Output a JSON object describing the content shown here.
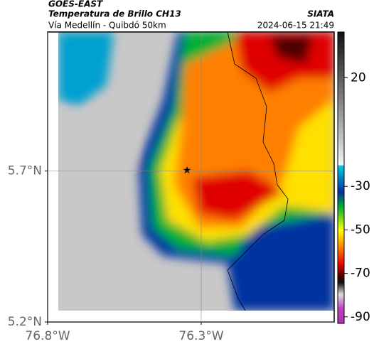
{
  "header": {
    "source": "GOES-EAST",
    "product": "Temperatura de Brillo CH13",
    "org": "SIATA",
    "subtitle": "Vía Medellín - Quibdó 50km",
    "timestamp": "2024-06-15 21:49"
  },
  "map": {
    "xlim": [
      -76.8,
      -75.867
    ],
    "ylim": [
      5.2,
      6.16
    ],
    "xticks": [
      {
        "value": -76.8,
        "label": "76.8°W"
      },
      {
        "value": -76.3,
        "label": "76.3°W"
      }
    ],
    "yticks": [
      {
        "value": 5.7,
        "label": "5.7°N"
      },
      {
        "value": 5.2,
        "label": "5.2°N"
      }
    ]
  },
  "colorbar": {
    "lim": [
      -93,
      41
    ],
    "ticks": [
      20,
      -30,
      -50,
      -70,
      -90
    ]
  }
}
